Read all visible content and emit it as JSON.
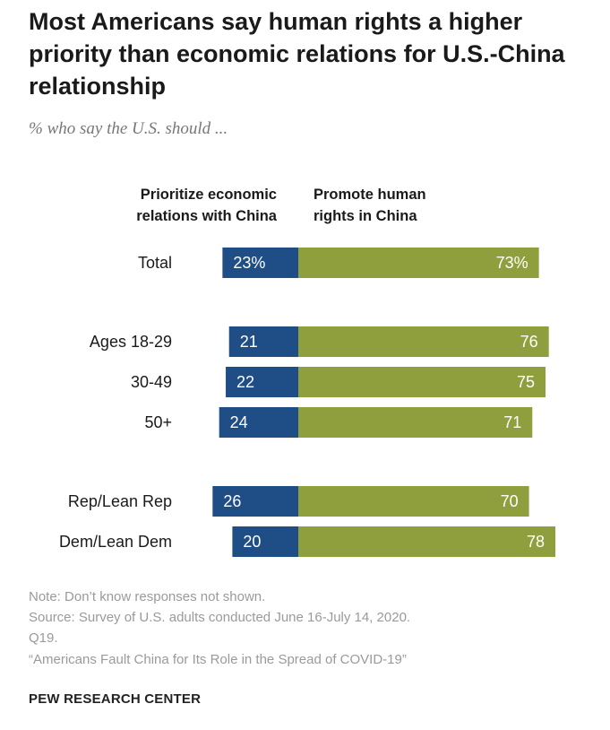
{
  "title": "Most Americans say human rights a higher priority than economic relations for U.S.-China relationship",
  "subtitle": "% who say the U.S. should ...",
  "colors": {
    "economic": "#1f4e86",
    "human_rights": "#8f9f3d",
    "bar_text": "#ffffff"
  },
  "chart_data": {
    "type": "bar",
    "orientation": "horizontal-diverging",
    "series": [
      {
        "name": "Prioritize economic relations with China",
        "color": "#1f4e86"
      },
      {
        "name": "Promote human rights in China",
        "color": "#8f9f3d"
      }
    ],
    "column_headers": {
      "left": [
        "Prioritize economic",
        "relations with China"
      ],
      "right": [
        "Promote human",
        "rights in China"
      ]
    },
    "rows": [
      {
        "label": "Total",
        "economic": 23,
        "human_rights": 73,
        "economic_label": "23%",
        "human_rights_label": "73%",
        "group": 0
      },
      {
        "label": "Ages 18-29",
        "economic": 21,
        "human_rights": 76,
        "economic_label": "21",
        "human_rights_label": "76",
        "group": 1
      },
      {
        "label": "30-49",
        "economic": 22,
        "human_rights": 75,
        "economic_label": "22",
        "human_rights_label": "75",
        "group": 1
      },
      {
        "label": "50+",
        "economic": 24,
        "human_rights": 71,
        "economic_label": "24",
        "human_rights_label": "71",
        "group": 1
      },
      {
        "label": "Rep/Lean Rep",
        "economic": 26,
        "human_rights": 70,
        "economic_label": "26",
        "human_rights_label": "70",
        "group": 2
      },
      {
        "label": "Dem/Lean Dem",
        "economic": 20,
        "human_rights": 78,
        "economic_label": "20",
        "human_rights_label": "78",
        "group": 2
      }
    ]
  },
  "notes": {
    "note": "Note: Don’t know responses not shown.",
    "source_line1": "Source: Survey of U.S. adults conducted June 16-July 14, 2020.",
    "source_line2": "Q19.",
    "report": "“Americans Fault China for Its Role in the Spread of COVID-19”",
    "org": "PEW RESEARCH CENTER"
  }
}
